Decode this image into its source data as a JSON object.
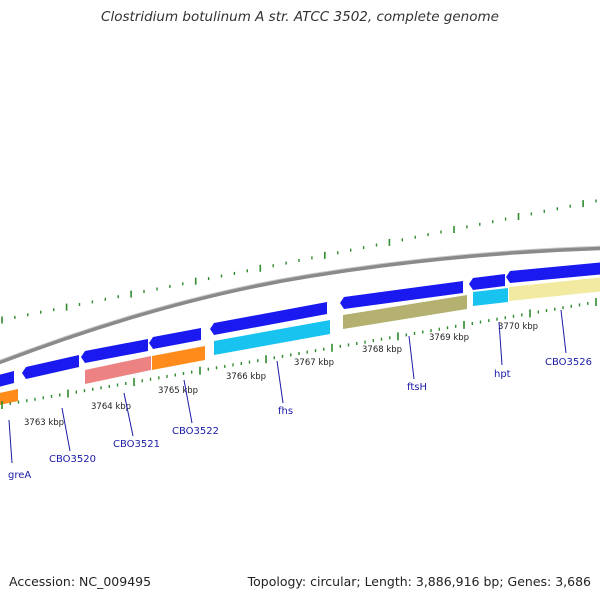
{
  "title": "Clostridium botulinum A str. ATCC 3502, complete genome",
  "footer": {
    "accession": "Accession: NC_009495",
    "topology": "Topology: circular",
    "length": "Length: 3,886,916 bp",
    "genes": "Genes: 3,686"
  },
  "colors": {
    "backbone": "#8a8a8a",
    "tick": "#2e8b2e",
    "gene_blue": "#1a1af0",
    "gene_cyan": "#19c3f0",
    "gene_orange": "#ff8c1a",
    "gene_pink": "#ec8282",
    "gene_olive": "#b4b070",
    "gene_yellow": "#f2eaa0",
    "label_text": "#1a1aa6"
  },
  "scale_labels": [
    "3763 kbp",
    "3764 kbp",
    "3765 kbp",
    "3766 kbp",
    "3767 kbp",
    "3768 kbp",
    "3769 kbp",
    "3770 kbp"
  ],
  "gene_labels": [
    "greA",
    "CBO3520",
    "CBO3521",
    "CBO3522",
    "fhs",
    "ftsH",
    "hpt",
    "CBO3526"
  ]
}
